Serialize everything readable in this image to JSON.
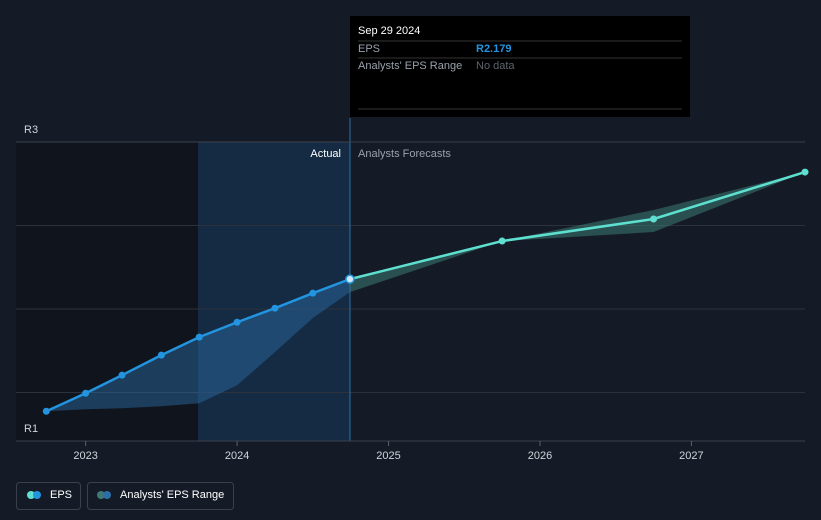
{
  "chart_data": {
    "type": "line",
    "xlim": [
      2022.54,
      2027.75
    ],
    "xticks": [
      {
        "value": 2023,
        "label": "2023"
      },
      {
        "value": 2024,
        "label": "2024"
      },
      {
        "value": 2025,
        "label": "2025"
      },
      {
        "value": 2026,
        "label": "2026"
      },
      {
        "value": 2027,
        "label": "2027"
      }
    ],
    "ylim": [
      1.21,
      3
    ],
    "yticks": [
      {
        "value": 1.21,
        "label": "R1"
      },
      {
        "value": 3,
        "label": "R3"
      }
    ],
    "annotations": {
      "actual": "Actual",
      "forecast": "Analysts Forecasts"
    },
    "series": [
      {
        "name": "EPS",
        "color": "#2394df",
        "forecast_color": "#5ee0d0",
        "x": [
          2022.74,
          2023.0,
          2023.24,
          2023.5,
          2023.75,
          2024.0,
          2024.25,
          2024.5,
          2024.745,
          2025.75,
          2026.75,
          2027.75
        ],
        "values": [
          1.388,
          1.496,
          1.604,
          1.724,
          1.832,
          1.921,
          2.005,
          2.095,
          2.179,
          2.407,
          2.539,
          2.82
        ]
      }
    ],
    "range": {
      "name": "Analysts' EPS Range",
      "color": "#2c6fa8",
      "forecast_color": "#3d7a74",
      "x": [
        2022.74,
        2023.0,
        2023.24,
        2023.5,
        2023.75,
        2024.0,
        2024.25,
        2024.5,
        2024.745,
        2025.75,
        2026.75,
        2027.75
      ],
      "low": [
        1.388,
        1.4,
        1.406,
        1.418,
        1.436,
        1.544,
        1.742,
        1.946,
        2.101,
        2.407,
        2.461,
        2.82
      ],
      "high": [
        1.388,
        1.496,
        1.604,
        1.724,
        1.832,
        1.921,
        2.005,
        2.095,
        2.179,
        2.407,
        2.593,
        2.82
      ]
    },
    "tooltip": {
      "date": "Sep 29 2024",
      "eps_label": "EPS",
      "eps_value": "R2.179",
      "range_label": "Analysts' EPS Range",
      "range_value": "No data"
    }
  }
}
